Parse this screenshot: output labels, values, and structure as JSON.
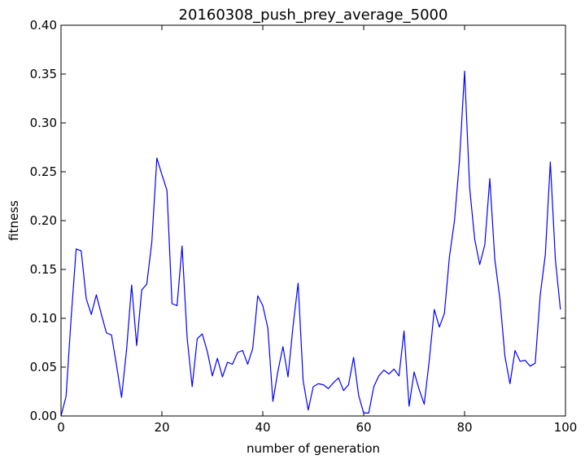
{
  "chart_data": {
    "type": "line",
    "title": "20160308_push_prey_average_5000",
    "xlabel": "number of generation",
    "ylabel": "fitness",
    "xlim": [
      0,
      100
    ],
    "ylim": [
      0.0,
      0.4
    ],
    "grid": false,
    "x_ticks": [
      "0",
      "20",
      "40",
      "60",
      "80",
      "100"
    ],
    "y_ticks": [
      "0.00",
      "0.05",
      "0.10",
      "0.15",
      "0.20",
      "0.25",
      "0.30",
      "0.35",
      "0.40"
    ],
    "series": [
      {
        "color": "#0000ff",
        "x": [
          0,
          1,
          2,
          3,
          4,
          5,
          6,
          7,
          8,
          9,
          10,
          11,
          12,
          13,
          14,
          15,
          16,
          17,
          18,
          19,
          20,
          21,
          22,
          23,
          24,
          25,
          26,
          27,
          28,
          29,
          30,
          31,
          32,
          33,
          34,
          35,
          36,
          37,
          38,
          39,
          40,
          41,
          42,
          43,
          44,
          45,
          46,
          47,
          48,
          49,
          50,
          51,
          52,
          53,
          54,
          55,
          56,
          57,
          58,
          59,
          60,
          61,
          62,
          63,
          64,
          65,
          66,
          67,
          68,
          69,
          70,
          71,
          72,
          73,
          74,
          75,
          76,
          77,
          78,
          79,
          80,
          81,
          82,
          83,
          84,
          85,
          86,
          87,
          88,
          89,
          90,
          91,
          92,
          93,
          94,
          95,
          96,
          97,
          98,
          99
        ],
        "y": [
          0.0,
          0.02,
          0.1,
          0.171,
          0.169,
          0.12,
          0.104,
          0.124,
          0.104,
          0.085,
          0.083,
          0.052,
          0.019,
          0.068,
          0.134,
          0.072,
          0.129,
          0.135,
          0.178,
          0.264,
          0.247,
          0.231,
          0.115,
          0.113,
          0.174,
          0.08,
          0.03,
          0.079,
          0.084,
          0.066,
          0.041,
          0.059,
          0.04,
          0.055,
          0.053,
          0.065,
          0.067,
          0.053,
          0.069,
          0.123,
          0.113,
          0.09,
          0.015,
          0.046,
          0.071,
          0.04,
          0.092,
          0.136,
          0.036,
          0.006,
          0.03,
          0.033,
          0.032,
          0.028,
          0.034,
          0.039,
          0.026,
          0.032,
          0.06,
          0.021,
          0.003,
          0.003,
          0.03,
          0.041,
          0.047,
          0.043,
          0.048,
          0.041,
          0.087,
          0.01,
          0.045,
          0.027,
          0.012,
          0.057,
          0.109,
          0.091,
          0.105,
          0.163,
          0.2,
          0.262,
          0.353,
          0.234,
          0.181,
          0.155,
          0.175,
          0.243,
          0.16,
          0.12,
          0.061,
          0.033,
          0.067,
          0.056,
          0.057,
          0.051,
          0.054,
          0.124,
          0.165,
          0.26,
          0.16,
          0.109
        ]
      }
    ]
  }
}
